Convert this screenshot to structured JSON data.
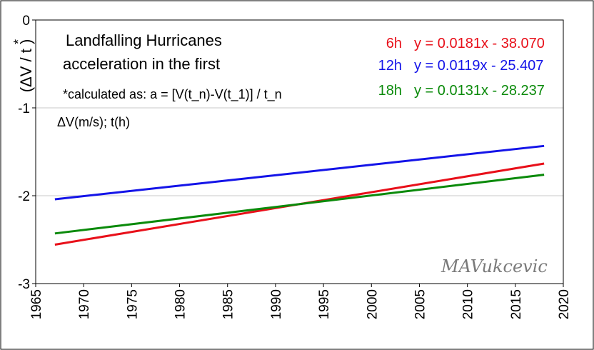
{
  "chart_data": {
    "type": "line",
    "title_lines": [
      "Landfalling Hurricanes",
      "acceleration in the first"
    ],
    "note": "*calculated as: a = [V(t_n)-V(t_1)] / t_n",
    "units_label": "ΔV(m/s); t(h)",
    "ylabel": "(ΔV / t )",
    "ylabel_sup": "*",
    "xlim": [
      1965,
      2020
    ],
    "ylim": [
      -3,
      0
    ],
    "x_ticks": [
      "1965",
      "1970",
      "1975",
      "1980",
      "1985",
      "1990",
      "1995",
      "2000",
      "2005",
      "2010",
      "2015",
      "2020"
    ],
    "y_ticks": [
      "0",
      "-1",
      "-2",
      "-3"
    ],
    "grid": "horizontal",
    "signature": "MAVukcevic",
    "series": [
      {
        "name": "6h",
        "equation": "y = 0.0181x - 38.070",
        "color": "#e8101a",
        "x": [
          1967,
          2018
        ],
        "y": [
          -2.557,
          -1.634
        ]
      },
      {
        "name": "12h",
        "equation": "y = 0.0119x - 25.407",
        "color": "#1414e8",
        "x": [
          1967,
          2018
        ],
        "y": [
          -2.0403,
          -1.4334
        ]
      },
      {
        "name": "18h",
        "equation": "y = 0.0131x - 28.237",
        "color": "#0a8a0a",
        "x": [
          1967,
          2018
        ],
        "y": [
          -2.4293,
          -1.7612
        ]
      }
    ]
  }
}
